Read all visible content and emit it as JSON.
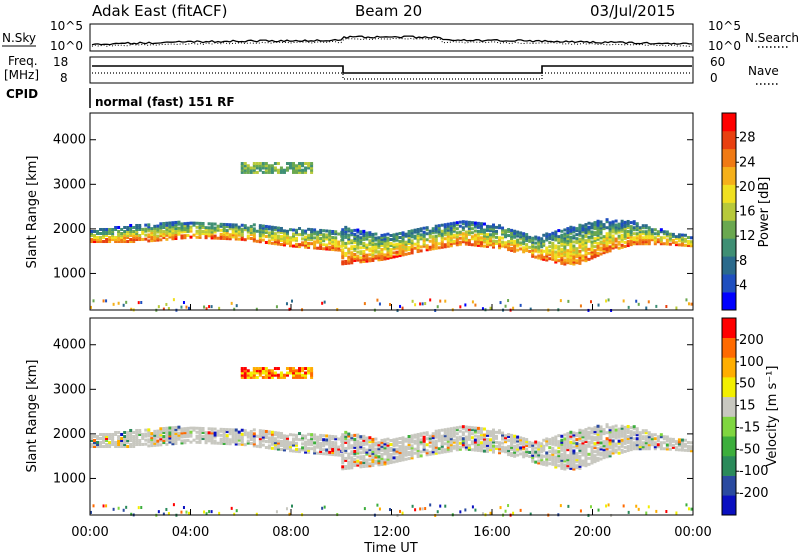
{
  "header": {
    "radar": "Adak East (fitACF)",
    "beam": "Beam 20",
    "date": "03/Jul/2015"
  },
  "panels": {
    "nsky_label": "N.Sky",
    "nsky_ticks": [
      "10^5",
      "10^0"
    ],
    "nsearch_label": "N.Search",
    "nsearch_ticks": [
      "10^5",
      "10^0"
    ],
    "freq_label": "Freq.",
    "freq_unit": "[MHz]",
    "freq_ticks": [
      "18",
      "8"
    ],
    "nave_label": "Nave",
    "nave_ticks": [
      "60",
      "0"
    ],
    "cpid_label": "CPID",
    "cpid_text": "normal (fast) 151 RF"
  },
  "chart_data": [
    {
      "type": "heatmap",
      "name": "power",
      "ylabel": "Slant Range [km]",
      "y_ticks": [
        "4000",
        "3000",
        "2000",
        "1000"
      ],
      "y_tick_values": [
        4000,
        3000,
        2000,
        1000
      ],
      "ylim": [
        180,
        4600
      ],
      "xlim": [
        0,
        24
      ],
      "colorbar": {
        "label": "Power [dB]",
        "tick_labels": [
          "28",
          "24",
          "20",
          "16",
          "12",
          "8",
          "4"
        ],
        "colors": [
          "#0000ff",
          "#1f4fbf",
          "#2a6a8c",
          "#3f8f74",
          "#6aa850",
          "#b7c93a",
          "#f0e020",
          "#f5b01a",
          "#f07a14",
          "#e84010",
          "#ff0000"
        ]
      },
      "echo_bands": [
        {
          "from_h": 0.0,
          "to_h": 10.0,
          "upper_km": [
            2000,
            2150,
            2200,
            2150,
            2050,
            2000
          ],
          "lower_km": [
            1750,
            1750,
            1850,
            1800,
            1650,
            1550
          ]
        },
        {
          "from_h": 10.0,
          "to_h": 18.0,
          "upper_km": [
            2100,
            1900,
            2050,
            2200,
            2100,
            1800
          ],
          "lower_km": [
            1250,
            1350,
            1550,
            1700,
            1600,
            1350
          ]
        },
        {
          "from_h": 18.0,
          "to_h": 24.0,
          "upper_km": [
            1900,
            2100,
            2250,
            2200,
            2000,
            1850
          ],
          "lower_km": [
            1350,
            1200,
            1500,
            1700,
            1700,
            1650
          ]
        }
      ],
      "high_range_patch": {
        "from_h": 6.0,
        "to_h": 8.8,
        "from_km": 3300,
        "to_km": 3550
      }
    },
    {
      "type": "heatmap",
      "name": "velocity",
      "ylabel": "Slant Range [km]",
      "y_ticks": [
        "4000",
        "3000",
        "2000",
        "1000"
      ],
      "y_tick_values": [
        4000,
        3000,
        2000,
        1000
      ],
      "ylim": [
        180,
        4600
      ],
      "xlim": [
        0,
        24
      ],
      "xlabel": "Time UT",
      "x_ticks": [
        "00:00",
        "04:00",
        "08:00",
        "12:00",
        "16:00",
        "20:00",
        "00:00"
      ],
      "x_tick_values": [
        0,
        4,
        8,
        12,
        16,
        20,
        24
      ],
      "colorbar": {
        "label": "Velocity [m s⁻¹]",
        "tick_labels": [
          "200",
          "100",
          "50",
          "15",
          "-15",
          "-50",
          "-100",
          "-200"
        ],
        "colors": [
          "#ff0000",
          "#ff6a00",
          "#ffae00",
          "#f2ef00",
          "#c8c8c0",
          "#7fd640",
          "#3cae3c",
          "#2a8a5a",
          "#2a4aa0",
          "#0a10c0"
        ]
      }
    }
  ],
  "colors": {
    "frame": "#000000",
    "ground_scatter": "#c8c8c0"
  }
}
